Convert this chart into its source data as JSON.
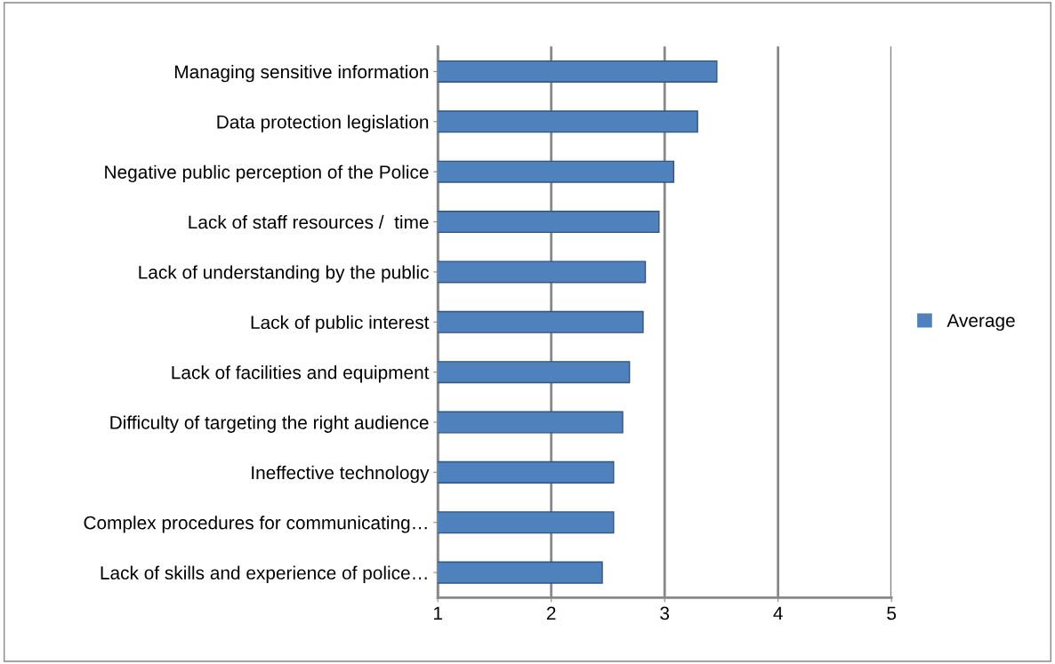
{
  "chart_data": {
    "type": "bar",
    "orientation": "horizontal",
    "categories": [
      "Managing sensitive information",
      "Data protection legislation",
      "Negative public perception of the Police",
      "Lack of staff resources /  time",
      "Lack of understanding by the public",
      "Lack of public interest",
      "Lack of facilities and equipment",
      "Difficulty of targeting the right audience",
      "Ineffective technology",
      "Complex procedures for communicating…",
      "Lack of skills and experience of police…"
    ],
    "series": [
      {
        "name": "Average",
        "color": "#4f81bd",
        "values": [
          3.46,
          3.29,
          3.08,
          2.95,
          2.83,
          2.81,
          2.69,
          2.63,
          2.55,
          2.55,
          2.45
        ]
      }
    ],
    "xlim": [
      1,
      5
    ],
    "xticks": [
      1,
      2,
      3,
      4,
      5
    ],
    "grid": "x",
    "legend": "right"
  }
}
